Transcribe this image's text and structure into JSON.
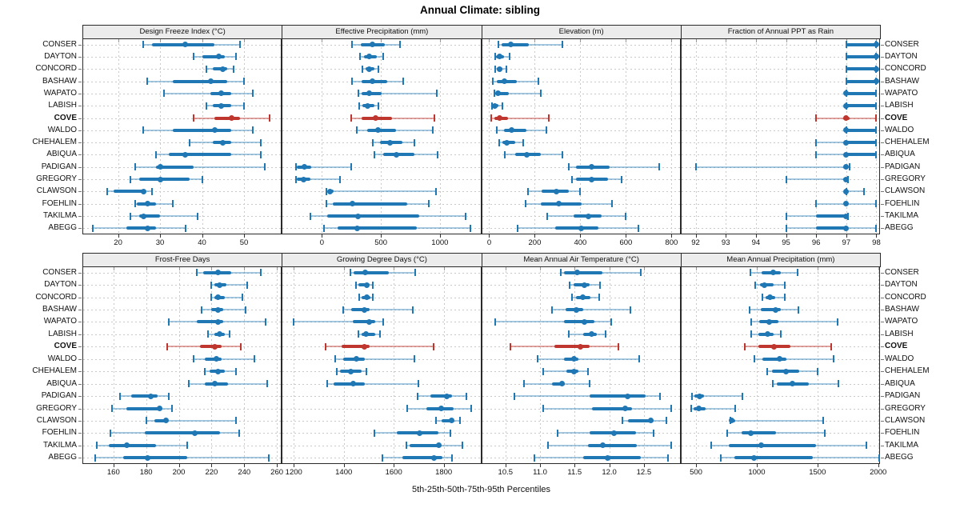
{
  "title": "Annual Climate: sibling",
  "footer": "5th-25th-50th-75th-95th Percentiles",
  "percentiles": [
    "5th",
    "25th",
    "50th",
    "75th",
    "95th"
  ],
  "sites": [
    {
      "name": "CONSER",
      "highlight": false
    },
    {
      "name": "DAYTON",
      "highlight": false
    },
    {
      "name": "CONCORD",
      "highlight": false
    },
    {
      "name": "BASHAW",
      "highlight": false
    },
    {
      "name": "WAPATO",
      "highlight": false
    },
    {
      "name": "LABISH",
      "highlight": false
    },
    {
      "name": "COVE",
      "highlight": true
    },
    {
      "name": "WALDO",
      "highlight": false
    },
    {
      "name": "CHEHALEM",
      "highlight": false
    },
    {
      "name": "ABIQUA",
      "highlight": false
    },
    {
      "name": "PADIGAN",
      "highlight": false
    },
    {
      "name": "GREGORY",
      "highlight": false
    },
    {
      "name": "CLAWSON",
      "highlight": false
    },
    {
      "name": "FOEHLIN",
      "highlight": false
    },
    {
      "name": "TAKILMA",
      "highlight": false
    },
    {
      "name": "ABEGG",
      "highlight": false
    }
  ],
  "colors": {
    "blue": "#1f77b4",
    "blue_light": "rgba(31,119,180,0.40)",
    "red": "#bf362e",
    "red_light": "rgba(191,54,46,0.45)",
    "grid": "#c9c9c9",
    "strip_bg": "#ececec",
    "border": "#2a2a2a"
  },
  "chart_data": [
    {
      "type": "dotplot-interval",
      "row": 0,
      "col": 0,
      "title": "Design Freeze Index (°C)",
      "xdomain": [
        11.5,
        59
      ],
      "ticks": [
        20,
        30,
        40,
        50
      ],
      "tick_labels": [
        "20",
        "30",
        "40",
        "50"
      ],
      "values": [
        [
          26,
          28,
          36,
          43,
          49
        ],
        [
          38,
          40,
          44,
          45.5,
          48
        ],
        [
          41,
          42.5,
          45,
          46,
          47.5
        ],
        [
          27,
          33,
          42,
          46,
          50
        ],
        [
          31,
          42,
          44.5,
          47,
          52
        ],
        [
          41,
          42.5,
          44.5,
          47,
          50
        ],
        [
          38,
          43,
          47,
          49,
          56
        ],
        [
          26,
          33,
          43,
          47,
          52
        ],
        [
          37,
          42.5,
          45,
          47,
          54
        ],
        [
          29,
          32,
          36,
          47,
          54
        ],
        [
          24,
          29,
          30,
          38,
          55
        ],
        [
          23,
          25,
          30,
          37,
          40
        ],
        [
          17.5,
          19,
          26,
          26.5,
          28
        ],
        [
          24,
          24.5,
          27,
          29,
          33
        ],
        [
          23,
          25,
          26,
          30,
          39
        ],
        [
          14,
          22,
          27,
          29,
          36
        ]
      ]
    },
    {
      "type": "dotplot-interval",
      "row": 0,
      "col": 1,
      "title": "Effective Precipitation (mm)",
      "xdomain": [
        -340,
        1350
      ],
      "ticks": [
        0,
        500,
        1000
      ],
      "tick_labels": [
        "0",
        "500",
        "1000"
      ],
      "values": [
        [
          255,
          330,
          430,
          530,
          660
        ],
        [
          323,
          354,
          400,
          467,
          519
        ],
        [
          345,
          368,
          400,
          445,
          481
        ],
        [
          255,
          339,
          429,
          553,
          688
        ],
        [
          309,
          339,
          400,
          503,
          977
        ],
        [
          316,
          345,
          384,
          445,
          481
        ],
        [
          248,
          339,
          458,
          594,
          954
        ],
        [
          293,
          384,
          474,
          625,
          941
        ],
        [
          429,
          490,
          580,
          684,
          783
        ],
        [
          445,
          519,
          632,
          783,
          981
        ],
        [
          -221,
          -210,
          -151,
          -90,
          248
        ],
        [
          -221,
          -210,
          -158,
          -97,
          151
        ],
        [
          38,
          52,
          68,
          97,
          970
        ],
        [
          38,
          90,
          255,
          722,
          903
        ],
        [
          -97,
          45,
          305,
          824,
          1219
        ],
        [
          16,
          135,
          298,
          806,
          1257
        ]
      ]
    },
    {
      "type": "dotplot-interval",
      "row": 0,
      "col": 2,
      "title": "Elevation (m)",
      "xdomain": [
        -35,
        840
      ],
      "ticks": [
        0,
        200,
        400,
        600,
        800
      ],
      "tick_labels": [
        "0",
        "200",
        "400",
        "600",
        "800"
      ],
      "values": [
        [
          40,
          55,
          95,
          175,
          320
        ],
        [
          25,
          30,
          45,
          65,
          90
        ],
        [
          27,
          35,
          44,
          57,
          74
        ],
        [
          16,
          35,
          68,
          120,
          215
        ],
        [
          22,
          27,
          38,
          87,
          227
        ],
        [
          13,
          16,
          24,
          42,
          57
        ],
        [
          9,
          24,
          44,
          82,
          262
        ],
        [
          33,
          66,
          100,
          165,
          250
        ],
        [
          44,
          57,
          77,
          115,
          148
        ],
        [
          68,
          115,
          165,
          225,
          320
        ],
        [
          350,
          382,
          448,
          530,
          745
        ],
        [
          365,
          380,
          448,
          520,
          580
        ],
        [
          170,
          230,
          295,
          350,
          400
        ],
        [
          160,
          225,
          305,
          405,
          540
        ],
        [
          255,
          370,
          437,
          492,
          600
        ],
        [
          125,
          290,
          405,
          480,
          655
        ]
      ]
    },
    {
      "type": "dotplot-interval",
      "row": 0,
      "col": 3,
      "title": "Fraction of Annual PPT as Rain",
      "xdomain": [
        91.5,
        98.12
      ],
      "ticks": [
        92,
        93,
        94,
        95,
        96,
        97,
        98
      ],
      "tick_labels": [
        "92",
        "93",
        "94",
        "95",
        "96",
        "97",
        "98"
      ],
      "values": [
        [
          97,
          97,
          98,
          98,
          98
        ],
        [
          97,
          97,
          98,
          98,
          98
        ],
        [
          97,
          97,
          98,
          98,
          98
        ],
        [
          97,
          97,
          98,
          98,
          98
        ],
        [
          97,
          97,
          97,
          98,
          98
        ],
        [
          97,
          97,
          97,
          98,
          98
        ],
        [
          96,
          96.9,
          97,
          97.1,
          98
        ],
        [
          97,
          97,
          97,
          98,
          98
        ],
        [
          96,
          97,
          97,
          98,
          98
        ],
        [
          96,
          97,
          97,
          98,
          98
        ],
        [
          92,
          96.9,
          97,
          97,
          97.1
        ],
        [
          95,
          96.9,
          97,
          97,
          97.05
        ],
        [
          97,
          97,
          97,
          97,
          97.6
        ],
        [
          96,
          97,
          97,
          97,
          98
        ],
        [
          95,
          96,
          97,
          97,
          97.05
        ],
        [
          95,
          96,
          97,
          97,
          98
        ]
      ]
    },
    {
      "type": "dotplot-interval",
      "row": 1,
      "col": 0,
      "title": "Frost-Free Days",
      "xdomain": [
        141,
        263
      ],
      "ticks": [
        160,
        180,
        200,
        220,
        240,
        260
      ],
      "tick_labels": [
        "160",
        "180",
        "200",
        "220",
        "240",
        "260"
      ],
      "values": [
        [
          211,
          215,
          224,
          232,
          250
        ],
        [
          220,
          222,
          225,
          229,
          242
        ],
        [
          220,
          222,
          224,
          228,
          239
        ],
        [
          214,
          220,
          224,
          227,
          241
        ],
        [
          194,
          211,
          224,
          227,
          253
        ],
        [
          218,
          222,
          225,
          228,
          231
        ],
        [
          193,
          213,
          222,
          226,
          238
        ],
        [
          209,
          216,
          223,
          226,
          246
        ],
        [
          216,
          219,
          224,
          228,
          235
        ],
        [
          206,
          216,
          222,
          230,
          254
        ],
        [
          164,
          171,
          183,
          187,
          194
        ],
        [
          159,
          168,
          188,
          190,
          196
        ],
        [
          180,
          185,
          192,
          193,
          235
        ],
        [
          158,
          179,
          210,
          225,
          237
        ],
        [
          150,
          157,
          168,
          186,
          205
        ],
        [
          149,
          166,
          181,
          205,
          255
        ]
      ]
    },
    {
      "type": "dotplot-interval",
      "row": 1,
      "col": 1,
      "title": "Growing Degree Days (°C)",
      "xdomain": [
        1152,
        1950
      ],
      "ticks": [
        1200,
        1400,
        1600,
        1800
      ],
      "tick_labels": [
        "1200",
        "1400",
        "1600",
        "1800"
      ],
      "values": [
        [
          1425,
          1440,
          1485,
          1580,
          1685
        ],
        [
          1448,
          1459,
          1491,
          1504,
          1517
        ],
        [
          1461,
          1472,
          1493,
          1506,
          1517
        ],
        [
          1399,
          1431,
          1483,
          1504,
          1675
        ],
        [
          1200,
          1435,
          1502,
          1525,
          1559
        ],
        [
          1459,
          1472,
          1490,
          1527,
          1544
        ],
        [
          1328,
          1392,
          1483,
          1504,
          1758
        ],
        [
          1365,
          1397,
          1451,
          1483,
          1683
        ],
        [
          1371,
          1385,
          1427,
          1470,
          1491
        ],
        [
          1335,
          1360,
          1438,
          1483,
          1698
        ],
        [
          1696,
          1747,
          1811,
          1832,
          1890
        ],
        [
          1655,
          1730,
          1790,
          1840,
          1911
        ],
        [
          1768,
          1790,
          1830,
          1843,
          1864
        ],
        [
          1523,
          1613,
          1704,
          1779,
          1826
        ],
        [
          1651,
          1662,
          1779,
          1790,
          1875
        ],
        [
          1555,
          1634,
          1762,
          1794,
          1832
        ]
      ]
    },
    {
      "type": "dotplot-interval",
      "row": 1,
      "col": 2,
      "title": "Mean Annual Air Temperature (°C)",
      "xdomain": [
        10.15,
        13.03
      ],
      "ticks": [
        10.5,
        11.0,
        11.5,
        12.0,
        12.5
      ],
      "tick_labels": [
        "10.5",
        "11.0",
        "11.5",
        "12.0",
        "12.5"
      ],
      "values": [
        [
          11.3,
          11.35,
          11.54,
          11.9,
          12.45
        ],
        [
          11.43,
          11.49,
          11.64,
          11.72,
          11.87
        ],
        [
          11.46,
          11.52,
          11.62,
          11.73,
          11.85
        ],
        [
          11.17,
          11.37,
          11.52,
          11.62,
          12.3
        ],
        [
          10.35,
          11.35,
          11.64,
          11.78,
          12.03
        ],
        [
          11.42,
          11.62,
          11.75,
          11.82,
          11.95
        ],
        [
          10.57,
          11.21,
          11.58,
          11.72,
          12.13
        ],
        [
          10.96,
          11.35,
          11.49,
          11.55,
          12.43
        ],
        [
          11.05,
          11.38,
          11.49,
          11.55,
          11.69
        ],
        [
          10.77,
          11.17,
          11.32,
          11.36,
          11.71
        ],
        [
          10.63,
          11.71,
          12.26,
          12.52,
          12.73
        ],
        [
          11.05,
          11.75,
          12.23,
          12.33,
          12.9
        ],
        [
          12.19,
          12.27,
          12.6,
          12.64,
          12.82
        ],
        [
          11.25,
          11.71,
          12.07,
          12.39,
          12.64
        ],
        [
          11.12,
          11.69,
          11.91,
          12.4,
          12.9
        ],
        [
          10.92,
          11.62,
          11.98,
          12.46,
          12.85
        ]
      ]
    },
    {
      "type": "dotplot-interval",
      "row": 1,
      "col": 3,
      "title": "Mean Annual Precipitation (mm)",
      "xdomain": [
        373,
        2015
      ],
      "ticks": [
        500,
        1000,
        1500,
        2000
      ],
      "tick_labels": [
        "500",
        "1000",
        "1500",
        "2000"
      ],
      "values": [
        [
          945,
          1040,
          1135,
          1195,
          1335
        ],
        [
          990,
          1027,
          1065,
          1137,
          1232
        ],
        [
          1049,
          1071,
          1109,
          1153,
          1232
        ],
        [
          940,
          1034,
          1153,
          1197,
          1342
        ],
        [
          955,
          1021,
          1104,
          1181,
          1665
        ],
        [
          955,
          1012,
          1087,
          1137,
          1197
        ],
        [
          902,
          1012,
          1144,
          1276,
          1614
        ],
        [
          984,
          1049,
          1188,
          1241,
          1636
        ],
        [
          1087,
          1126,
          1241,
          1351,
          1504
        ],
        [
          1131,
          1166,
          1291,
          1430,
          1671
        ],
        [
          470,
          485,
          530,
          565,
          880
        ],
        [
          463,
          478,
          522,
          580,
          823
        ],
        [
          780,
          788,
          795,
          820,
          1550
        ],
        [
          757,
          874,
          951,
          1159,
          1562
        ],
        [
          625,
          770,
          1034,
          1489,
          1900
        ],
        [
          705,
          815,
          975,
          1460,
          2010
        ]
      ]
    }
  ]
}
